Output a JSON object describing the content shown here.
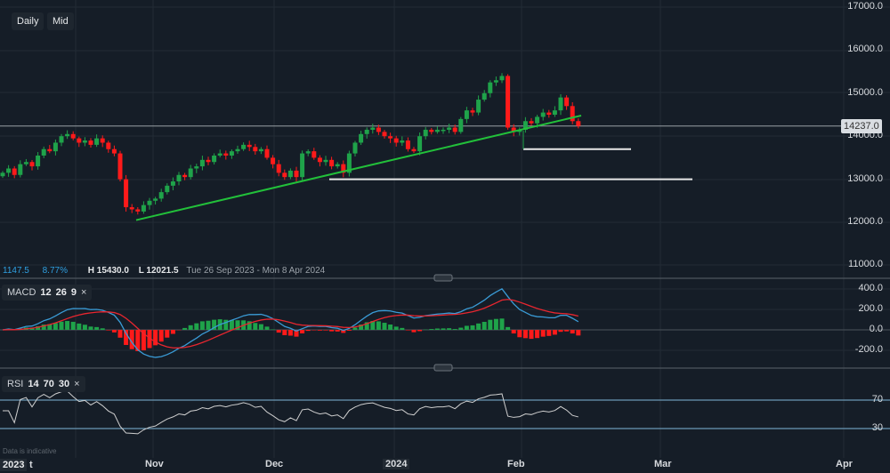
{
  "toolbar": {
    "daily_label": "Daily",
    "mid_label": "Mid"
  },
  "info": {
    "change": "1147.5",
    "change_pct": "8.77%",
    "high": "H 15430.0",
    "low": "L 12021.5",
    "range": "Tue 26 Sep 2023 - Mon 8 Apr 2024"
  },
  "macd": {
    "label": "MACD",
    "p1": "12",
    "p2": "26",
    "p3": "9",
    "close": "×"
  },
  "rsi": {
    "label": "RSI",
    "p1": "14",
    "p2": "70",
    "p3": "30",
    "close": "×"
  },
  "footer": {
    "note": "Data is indicative",
    "year": "2023",
    "t": "t"
  },
  "last_price": "14237.0",
  "colors": {
    "up": "#1fa34a",
    "down": "#ff1a1a",
    "trendline": "#22c03a",
    "macd": "#3a9bd6",
    "signal": "#e8262f",
    "rsi": "#cfcfcf",
    "rsi_bands": "#7fb6d8"
  },
  "chart_data": {
    "type": "candlestick",
    "price_axis": {
      "ticks": [
        "17000.0",
        "16000.0",
        "15000.0",
        "14000.0",
        "13000.0",
        "12000.0",
        "11000.0"
      ],
      "range": [
        11000,
        17000
      ]
    },
    "macd_axis": {
      "ticks": [
        "400.0",
        "200.0",
        "0.0",
        "-200.0"
      ]
    },
    "rsi_axis": {
      "ticks": [
        "70",
        "30"
      ]
    },
    "x_ticks": [
      "Nov",
      "Dec",
      "2024",
      "Feb",
      "Mar",
      "Apr"
    ],
    "closes": [
      13150,
      13250,
      13100,
      13350,
      13400,
      13300,
      13550,
      13700,
      13650,
      13850,
      14000,
      14050,
      13950,
      13850,
      13900,
      13800,
      13950,
      13850,
      13700,
      13600,
      13000,
      12350,
      12300,
      12250,
      12400,
      12500,
      12550,
      12700,
      12850,
      12950,
      13100,
      13050,
      13250,
      13300,
      13450,
      13400,
      13550,
      13600,
      13550,
      13650,
      13700,
      13800,
      13750,
      13650,
      13700,
      13500,
      13350,
      13150,
      13050,
      13200,
      13050,
      13600,
      13650,
      13500,
      13400,
      13450,
      13300,
      13350,
      13150,
      13600,
      13850,
      14050,
      14150,
      14200,
      14100,
      14000,
      13950,
      13850,
      13900,
      13700,
      13650,
      14000,
      14150,
      14100,
      14150,
      14150,
      14200,
      14100,
      14400,
      14600,
      14550,
      14850,
      15000,
      15250,
      15300,
      15400,
      14200,
      14100,
      14150,
      14350,
      14300,
      14450,
      14550,
      14500,
      14600,
      14900,
      14700,
      14350,
      14237
    ],
    "trendline": [
      [
        12050,
        14480
      ]
    ],
    "support_levels": [
      13000,
      13700
    ]
  }
}
